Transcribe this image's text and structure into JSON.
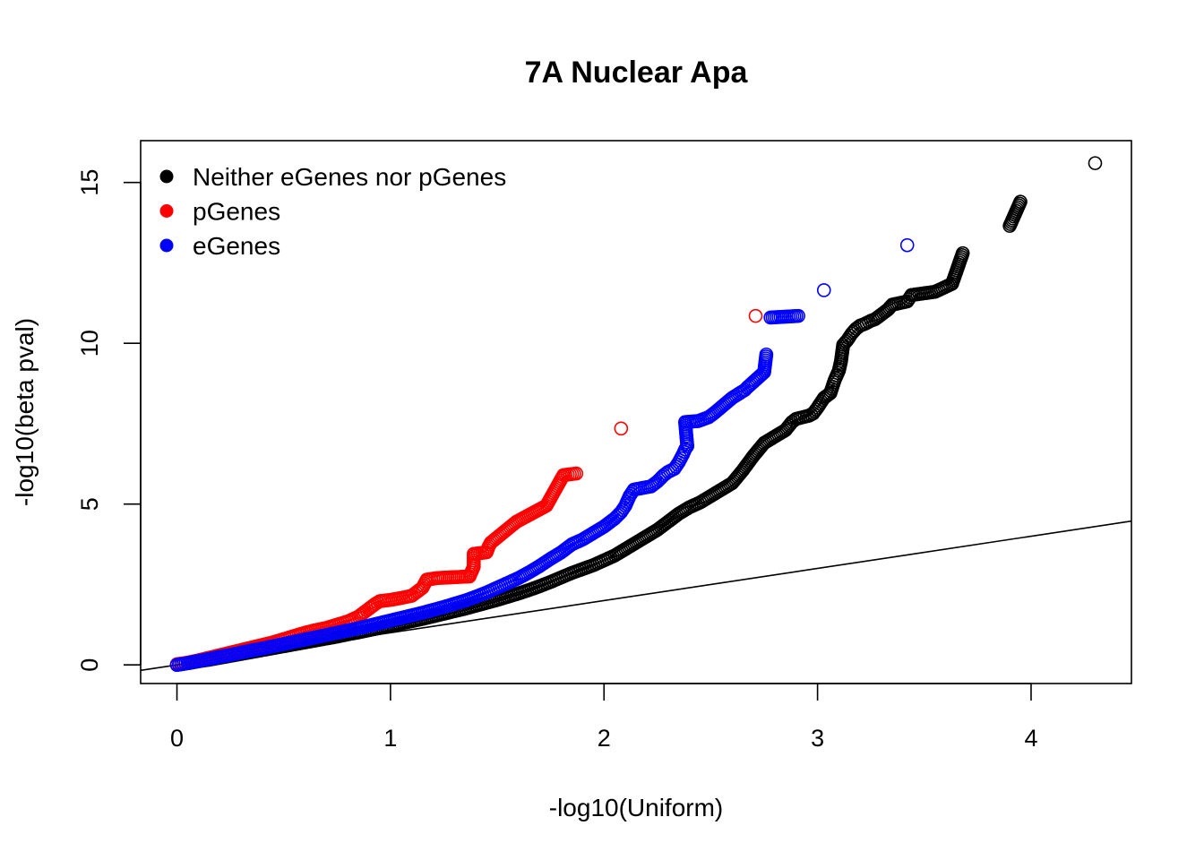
{
  "chart_data": {
    "type": "scatter",
    "title": "7A Nuclear Apa",
    "xlabel": "-log10(Uniform)",
    "ylabel": "-log10(beta pval)",
    "xlim": [
      -0.17,
      4.47
    ],
    "ylim": [
      -0.58,
      16.3
    ],
    "x_ticks": [
      0,
      1,
      2,
      3,
      4
    ],
    "x_tick_labels": [
      "0",
      "1",
      "2",
      "3",
      "4"
    ],
    "y_ticks": [
      0,
      5,
      10,
      15
    ],
    "y_tick_labels": [
      "0",
      "5",
      "10",
      "15"
    ],
    "reference_line": {
      "intercept": 0,
      "slope": 1
    },
    "legend_position": "top-left",
    "series": [
      {
        "name": "Neither eGenes nor pGenes",
        "color": "#000000",
        "marker": "open-circle",
        "points": [
          [
            0.0,
            0.0
          ],
          [
            0.03,
            0.03
          ],
          [
            0.06,
            0.06
          ],
          [
            0.1,
            0.11
          ],
          [
            0.15,
            0.16
          ],
          [
            0.2,
            0.22
          ],
          [
            0.25,
            0.28
          ],
          [
            0.3,
            0.34
          ],
          [
            0.35,
            0.4
          ],
          [
            0.4,
            0.46
          ],
          [
            0.45,
            0.52
          ],
          [
            0.5,
            0.58
          ],
          [
            0.55,
            0.64
          ],
          [
            0.6,
            0.7
          ],
          [
            0.65,
            0.76
          ],
          [
            0.7,
            0.82
          ],
          [
            0.75,
            0.88
          ],
          [
            0.8,
            0.95
          ],
          [
            0.85,
            1.01
          ],
          [
            0.9,
            1.08
          ],
          [
            0.95,
            1.15
          ],
          [
            1.0,
            1.22
          ],
          [
            1.05,
            1.29
          ],
          [
            1.1,
            1.36
          ],
          [
            1.15,
            1.43
          ],
          [
            1.2,
            1.51
          ],
          [
            1.25,
            1.59
          ],
          [
            1.3,
            1.67
          ],
          [
            1.35,
            1.75
          ],
          [
            1.4,
            1.84
          ],
          [
            1.45,
            1.93
          ],
          [
            1.5,
            2.02
          ],
          [
            1.55,
            2.12
          ],
          [
            1.6,
            2.22
          ],
          [
            1.65,
            2.33
          ],
          [
            1.7,
            2.45
          ],
          [
            1.75,
            2.58
          ],
          [
            1.8,
            2.72
          ],
          [
            1.85,
            2.86
          ],
          [
            1.9,
            2.98
          ],
          [
            1.95,
            3.1
          ],
          [
            2.0,
            3.25
          ],
          [
            2.05,
            3.4
          ],
          [
            2.1,
            3.6
          ],
          [
            2.15,
            3.8
          ],
          [
            2.2,
            4.0
          ],
          [
            2.25,
            4.2
          ],
          [
            2.3,
            4.45
          ],
          [
            2.35,
            4.7
          ],
          [
            2.4,
            4.9
          ],
          [
            2.45,
            5.05
          ],
          [
            2.5,
            5.25
          ],
          [
            2.55,
            5.45
          ],
          [
            2.6,
            5.65
          ],
          [
            2.65,
            6.05
          ],
          [
            2.7,
            6.5
          ],
          [
            2.75,
            6.9
          ],
          [
            2.8,
            7.1
          ],
          [
            2.85,
            7.3
          ],
          [
            2.88,
            7.55
          ],
          [
            2.9,
            7.65
          ],
          [
            2.93,
            7.7
          ],
          [
            2.96,
            7.75
          ],
          [
            2.98,
            7.82
          ],
          [
            3.0,
            8.0
          ],
          [
            3.03,
            8.3
          ],
          [
            3.06,
            8.45
          ],
          [
            3.08,
            8.85
          ],
          [
            3.09,
            9.0
          ],
          [
            3.1,
            9.15
          ],
          [
            3.11,
            9.45
          ],
          [
            3.12,
            9.95
          ],
          [
            3.14,
            10.1
          ],
          [
            3.16,
            10.3
          ],
          [
            3.18,
            10.45
          ],
          [
            3.2,
            10.55
          ],
          [
            3.22,
            10.6
          ],
          [
            3.25,
            10.7
          ],
          [
            3.27,
            10.75
          ],
          [
            3.33,
            11.05
          ],
          [
            3.35,
            11.2
          ],
          [
            3.42,
            11.3
          ],
          [
            3.44,
            11.5
          ],
          [
            3.55,
            11.6
          ],
          [
            3.63,
            11.85
          ],
          [
            3.68,
            12.8
          ],
          [
            3.9,
            13.65
          ],
          [
            3.95,
            14.4
          ],
          [
            4.3,
            15.6
          ]
        ]
      },
      {
        "name": "pGenes",
        "color": "#ff0000",
        "marker": "open-circle",
        "points": [
          [
            0.0,
            0.02
          ],
          [
            0.05,
            0.07
          ],
          [
            0.1,
            0.14
          ],
          [
            0.15,
            0.22
          ],
          [
            0.2,
            0.3
          ],
          [
            0.25,
            0.38
          ],
          [
            0.3,
            0.46
          ],
          [
            0.35,
            0.54
          ],
          [
            0.4,
            0.62
          ],
          [
            0.45,
            0.7
          ],
          [
            0.5,
            0.8
          ],
          [
            0.55,
            0.9
          ],
          [
            0.6,
            1.0
          ],
          [
            0.65,
            1.08
          ],
          [
            0.7,
            1.15
          ],
          [
            0.75,
            1.25
          ],
          [
            0.8,
            1.35
          ],
          [
            0.85,
            1.5
          ],
          [
            0.88,
            1.65
          ],
          [
            0.9,
            1.75
          ],
          [
            0.93,
            1.9
          ],
          [
            0.95,
            1.98
          ],
          [
            1.0,
            2.02
          ],
          [
            1.05,
            2.08
          ],
          [
            1.1,
            2.15
          ],
          [
            1.12,
            2.25
          ],
          [
            1.15,
            2.4
          ],
          [
            1.17,
            2.65
          ],
          [
            1.22,
            2.7
          ],
          [
            1.37,
            2.75
          ],
          [
            1.39,
            3.05
          ],
          [
            1.39,
            3.45
          ],
          [
            1.45,
            3.5
          ],
          [
            1.46,
            3.68
          ],
          [
            1.47,
            3.8
          ],
          [
            1.59,
            4.45
          ],
          [
            1.73,
            4.95
          ],
          [
            1.81,
            5.9
          ],
          [
            1.87,
            5.95
          ],
          [
            2.08,
            7.35
          ],
          [
            2.71,
            10.85
          ]
        ]
      },
      {
        "name": "eGenes",
        "color": "#0000ff",
        "marker": "open-circle",
        "points": [
          [
            0.0,
            0.0
          ],
          [
            0.03,
            0.03
          ],
          [
            0.06,
            0.07
          ],
          [
            0.1,
            0.12
          ],
          [
            0.15,
            0.18
          ],
          [
            0.2,
            0.25
          ],
          [
            0.25,
            0.31
          ],
          [
            0.3,
            0.38
          ],
          [
            0.35,
            0.45
          ],
          [
            0.4,
            0.51
          ],
          [
            0.45,
            0.58
          ],
          [
            0.5,
            0.65
          ],
          [
            0.55,
            0.72
          ],
          [
            0.6,
            0.79
          ],
          [
            0.65,
            0.86
          ],
          [
            0.7,
            0.93
          ],
          [
            0.75,
            1.0
          ],
          [
            0.8,
            1.07
          ],
          [
            0.85,
            1.14
          ],
          [
            0.9,
            1.22
          ],
          [
            0.95,
            1.3
          ],
          [
            1.0,
            1.38
          ],
          [
            1.05,
            1.46
          ],
          [
            1.1,
            1.54
          ],
          [
            1.15,
            1.62
          ],
          [
            1.2,
            1.71
          ],
          [
            1.25,
            1.8
          ],
          [
            1.3,
            1.9
          ],
          [
            1.35,
            2.0
          ],
          [
            1.4,
            2.12
          ],
          [
            1.45,
            2.25
          ],
          [
            1.5,
            2.4
          ],
          [
            1.55,
            2.55
          ],
          [
            1.6,
            2.7
          ],
          [
            1.65,
            2.88
          ],
          [
            1.7,
            3.08
          ],
          [
            1.75,
            3.3
          ],
          [
            1.8,
            3.5
          ],
          [
            1.85,
            3.75
          ],
          [
            1.9,
            3.9
          ],
          [
            1.95,
            4.1
          ],
          [
            2.0,
            4.3
          ],
          [
            2.05,
            4.55
          ],
          [
            2.08,
            4.75
          ],
          [
            2.1,
            4.95
          ],
          [
            2.12,
            5.25
          ],
          [
            2.14,
            5.45
          ],
          [
            2.18,
            5.5
          ],
          [
            2.22,
            5.55
          ],
          [
            2.25,
            5.7
          ],
          [
            2.28,
            5.9
          ],
          [
            2.3,
            6.0
          ],
          [
            2.33,
            6.1
          ],
          [
            2.35,
            6.3
          ],
          [
            2.37,
            6.55
          ],
          [
            2.38,
            6.7
          ],
          [
            2.39,
            6.8
          ],
          [
            2.38,
            7.55
          ],
          [
            2.44,
            7.58
          ],
          [
            2.49,
            7.7
          ],
          [
            2.52,
            7.85
          ],
          [
            2.6,
            8.3
          ],
          [
            2.66,
            8.55
          ],
          [
            2.67,
            8.62
          ],
          [
            2.75,
            9.1
          ],
          [
            2.76,
            9.65
          ],
          [
            2.78,
            10.8
          ],
          [
            2.91,
            10.85
          ],
          [
            3.03,
            11.65
          ],
          [
            3.42,
            13.05
          ]
        ]
      }
    ]
  }
}
